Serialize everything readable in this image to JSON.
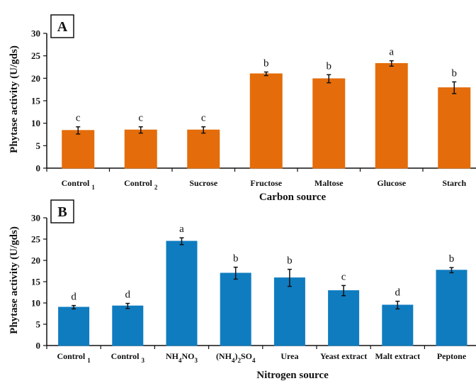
{
  "chart_data": [
    {
      "type": "bar",
      "panel_label": "A",
      "categories": [
        "Control 1",
        "Control 2",
        "Sucrose",
        "Fructose",
        "Maltose",
        "Glucose",
        "Starch"
      ],
      "values": [
        8.4,
        8.5,
        8.5,
        21.0,
        19.9,
        23.3,
        17.9
      ],
      "errors": [
        0.8,
        0.7,
        0.7,
        0.4,
        0.9,
        0.6,
        1.3
      ],
      "significance": [
        "c",
        "c",
        "c",
        "b",
        "b",
        "a",
        "b"
      ],
      "xlabel": "Carbon source",
      "ylabel": "Phytase activity (U/gds)",
      "ylim": [
        0,
        30
      ],
      "yticks": [
        "0",
        "5",
        "10",
        "15",
        "20",
        "25",
        "30"
      ],
      "color": "#E46C0A",
      "grid": false
    },
    {
      "type": "bar",
      "panel_label": "B",
      "categories": [
        "Control 1",
        "Control 3",
        "NH4NO3",
        "(NH4)2SO4",
        "Urea",
        "Yeast extract",
        "Malt extract",
        "Peptone"
      ],
      "values": [
        9.0,
        9.3,
        24.5,
        17.0,
        15.9,
        12.9,
        9.5,
        17.7
      ],
      "errors": [
        0.4,
        0.6,
        0.8,
        1.4,
        2.0,
        1.2,
        0.9,
        0.6
      ],
      "significance": [
        "d",
        "d",
        "a",
        "b",
        "b",
        "c",
        "d",
        "b"
      ],
      "xlabel": "Nitrogen source",
      "ylabel": "Phytase activity (U/gds)",
      "ylim": [
        0,
        30
      ],
      "yticks": [
        "0",
        "5",
        "10",
        "15",
        "20",
        "25",
        "30"
      ],
      "color": "#0F7CC0",
      "grid": false
    }
  ]
}
